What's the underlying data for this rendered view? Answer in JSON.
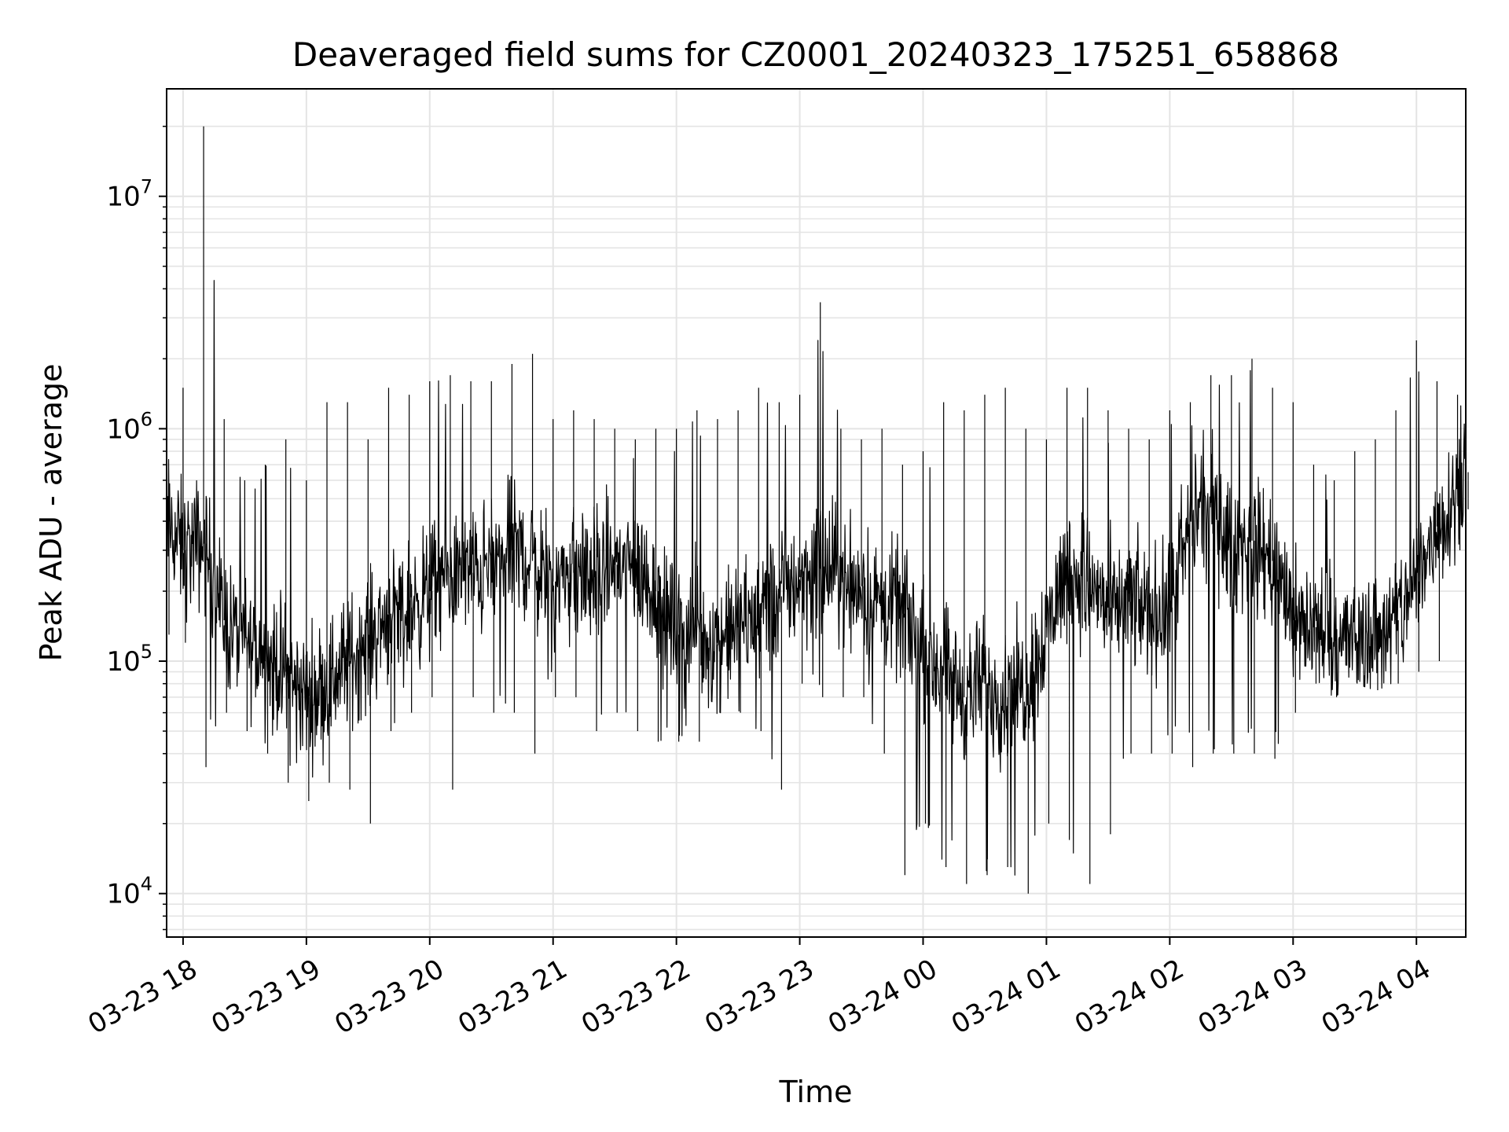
{
  "chart_data": {
    "type": "line",
    "title": "Deaveraged field sums for CZ0001_20240323_175251_658868",
    "xlabel": "Time",
    "ylabel": "Peak ADU - average",
    "yscale": "log",
    "ylim": [
      6500,
      29000000
    ],
    "xlim": [
      "2024-03-23 17:52",
      "2024-03-24 04:24"
    ],
    "grid": true,
    "line_color": "#000000",
    "x_ticks": [
      {
        "label": "03-23 18",
        "time": "2024-03-23 18:00"
      },
      {
        "label": "03-23 19",
        "time": "2024-03-23 19:00"
      },
      {
        "label": "03-23 20",
        "time": "2024-03-23 20:00"
      },
      {
        "label": "03-23 21",
        "time": "2024-03-23 21:00"
      },
      {
        "label": "03-23 22",
        "time": "2024-03-23 22:00"
      },
      {
        "label": "03-23 23",
        "time": "2024-03-23 23:00"
      },
      {
        "label": "03-24 00",
        "time": "2024-03-24 00:00"
      },
      {
        "label": "03-24 01",
        "time": "2024-03-24 01:00"
      },
      {
        "label": "03-24 02",
        "time": "2024-03-24 02:00"
      },
      {
        "label": "03-24 03",
        "time": "2024-03-24 03:00"
      },
      {
        "label": "03-24 04",
        "time": "2024-03-24 04:00"
      }
    ],
    "y_ticks": [
      {
        "base": "10",
        "exp": "4",
        "value": 10000
      },
      {
        "base": "10",
        "exp": "5",
        "value": 100000
      },
      {
        "base": "10",
        "exp": "6",
        "value": 1000000
      },
      {
        "base": "10",
        "exp": "7",
        "value": 10000000
      }
    ],
    "series": [
      {
        "x": [
          "2024-03-23 17:52",
          "2024-03-23 18:00",
          "2024-03-23 18:10",
          "2024-03-23 18:20",
          "2024-03-23 18:30",
          "2024-03-23 18:40",
          "2024-03-23 18:50",
          "2024-03-23 19:00",
          "2024-03-23 19:10",
          "2024-03-23 19:20",
          "2024-03-23 19:30",
          "2024-03-23 19:40",
          "2024-03-23 19:50",
          "2024-03-23 20:00",
          "2024-03-23 20:10",
          "2024-03-23 20:20",
          "2024-03-23 20:30",
          "2024-03-23 20:40",
          "2024-03-23 20:50",
          "2024-03-23 21:00",
          "2024-03-23 21:10",
          "2024-03-23 21:20",
          "2024-03-23 21:30",
          "2024-03-23 21:40",
          "2024-03-23 21:50",
          "2024-03-23 22:00",
          "2024-03-23 22:10",
          "2024-03-23 22:20",
          "2024-03-23 22:30",
          "2024-03-23 22:40",
          "2024-03-23 22:50",
          "2024-03-23 23:00",
          "2024-03-23 23:10",
          "2024-03-23 23:20",
          "2024-03-23 23:30",
          "2024-03-23 23:40",
          "2024-03-23 23:50",
          "2024-03-24 00:00",
          "2024-03-24 00:10",
          "2024-03-24 00:20",
          "2024-03-24 00:30",
          "2024-03-24 00:40",
          "2024-03-24 00:50",
          "2024-03-24 01:00",
          "2024-03-24 01:10",
          "2024-03-24 01:20",
          "2024-03-24 01:30",
          "2024-03-24 01:40",
          "2024-03-24 01:50",
          "2024-03-24 02:00",
          "2024-03-24 02:10",
          "2024-03-24 02:20",
          "2024-03-24 02:30",
          "2024-03-24 02:40",
          "2024-03-24 02:50",
          "2024-03-24 03:00",
          "2024-03-24 03:10",
          "2024-03-24 03:20",
          "2024-03-24 03:30",
          "2024-03-24 03:40",
          "2024-03-24 03:50",
          "2024-03-24 04:00",
          "2024-03-24 04:10",
          "2024-03-24 04:20",
          "2024-03-24 04:24"
        ],
        "y": [
          400000,
          300000,
          320000,
          150000,
          120000,
          100000,
          90000,
          70000,
          80000,
          100000,
          120000,
          160000,
          170000,
          200000,
          230000,
          240000,
          250000,
          300000,
          270000,
          220000,
          240000,
          230000,
          260000,
          250000,
          200000,
          130000,
          140000,
          120000,
          140000,
          150000,
          190000,
          230000,
          250000,
          230000,
          210000,
          170000,
          160000,
          110000,
          90000,
          70000,
          80000,
          70000,
          80000,
          140000,
          250000,
          220000,
          170000,
          180000,
          160000,
          170000,
          400000,
          480000,
          300000,
          330000,
          270000,
          150000,
          140000,
          130000,
          120000,
          130000,
          150000,
          220000,
          380000,
          550000,
          650000
        ],
        "upper": [
          1800000,
          1500000,
          20000000,
          1100000,
          600000,
          700000,
          900000,
          600000,
          1300000,
          1300000,
          900000,
          1500000,
          1400000,
          1600000,
          1700000,
          1600000,
          1600000,
          1900000,
          2100000,
          1100000,
          1200000,
          1100000,
          1000000,
          900000,
          1000000,
          1000000,
          1200000,
          1100000,
          1200000,
          1500000,
          1300000,
          1400000,
          3500000,
          1000000,
          900000,
          1000000,
          700000,
          800000,
          1300000,
          1200000,
          1400000,
          1500000,
          1000000,
          900000,
          1500000,
          1500000,
          1200000,
          1000000,
          900000,
          1200000,
          1300000,
          1700000,
          1700000,
          2000000,
          1500000,
          1300000,
          700000,
          600000,
          800000,
          900000,
          1200000,
          2400000,
          1600000,
          1400000,
          1700000
        ],
        "lower": [
          130000,
          120000,
          35000,
          60000,
          50000,
          40000,
          30000,
          25000,
          30000,
          28000,
          20000,
          50000,
          60000,
          70000,
          28000,
          70000,
          60000,
          60000,
          40000,
          70000,
          70000,
          50000,
          60000,
          50000,
          45000,
          45000,
          45000,
          60000,
          60000,
          50000,
          28000,
          80000,
          70000,
          70000,
          70000,
          40000,
          12000,
          20000,
          13000,
          11000,
          12000,
          13000,
          10000,
          20000,
          17000,
          11000,
          18000,
          40000,
          40000,
          40000,
          35000,
          40000,
          40000,
          40000,
          38000,
          60000,
          80000,
          70000,
          80000,
          75000,
          80000,
          90000,
          100000,
          300000,
          450000
        ]
      }
    ]
  }
}
